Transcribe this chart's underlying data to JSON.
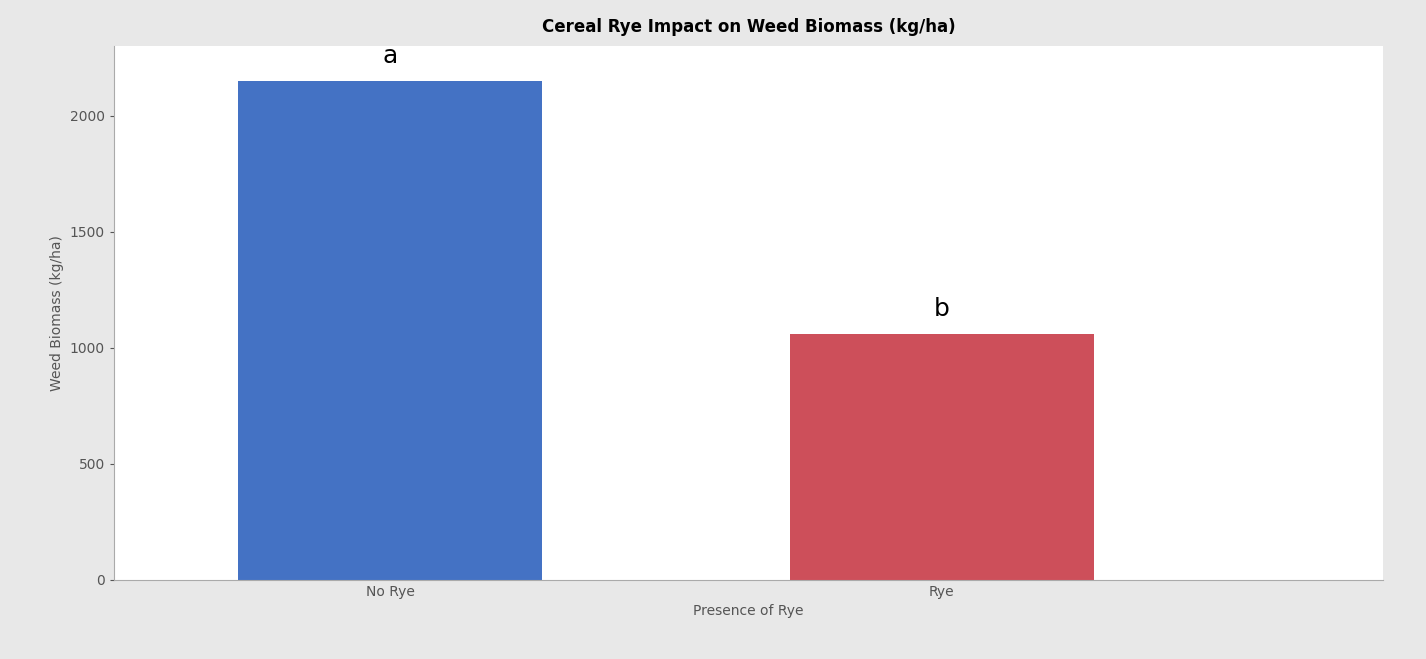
{
  "categories": [
    "No Rye",
    "Rye"
  ],
  "values": [
    2150,
    1060
  ],
  "bar_colors": [
    "#4472C4",
    "#CD4F5A"
  ],
  "title": "Cereal Rye Impact on Weed Biomass (kg/ha)",
  "xlabel": "Presence of Rye",
  "ylabel": "Weed Biomass (kg/ha)",
  "ylim": [
    0,
    2300
  ],
  "yticks": [
    0,
    500,
    1000,
    1500,
    2000
  ],
  "bar_width": 0.55,
  "annotations": [
    "a",
    "b"
  ],
  "annotation_offsets": [
    55,
    55
  ],
  "title_fontsize": 12,
  "label_fontsize": 10,
  "tick_fontsize": 10,
  "annotation_fontsize": 18,
  "background_color": "#e8e8e8",
  "plot_background_color": "#ffffff"
}
